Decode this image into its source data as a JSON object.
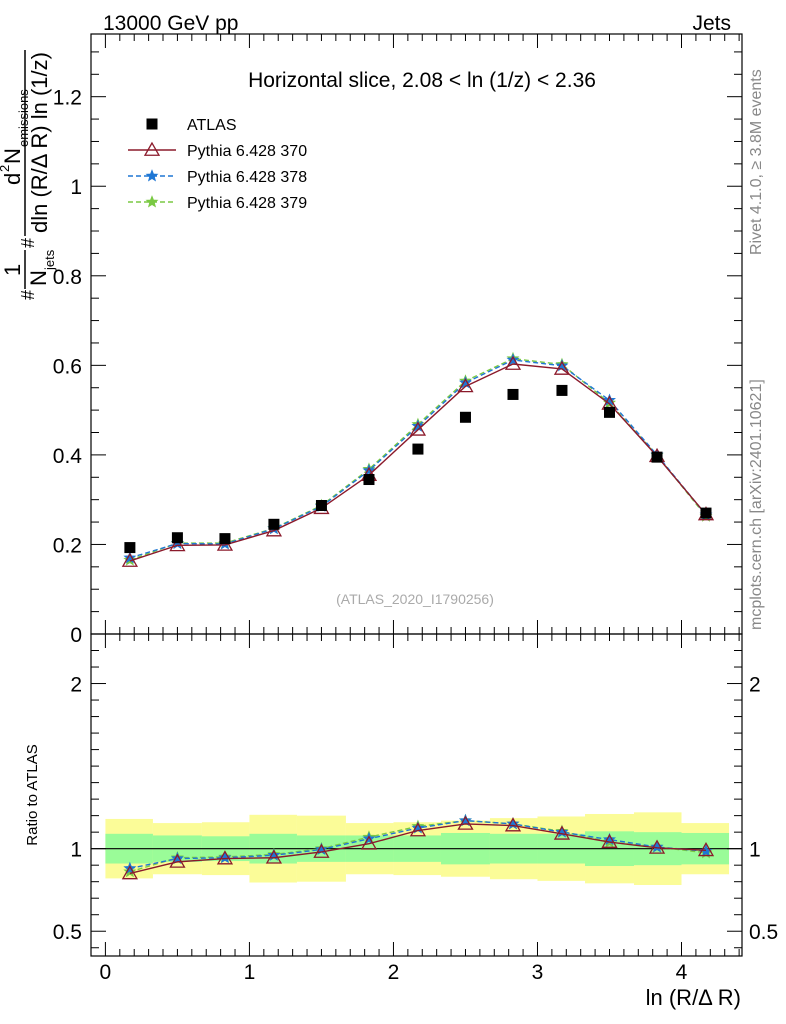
{
  "header": {
    "left_label": "13000 GeV pp",
    "right_label": "Jets",
    "side_label_top": "Rivet 4.1.0, ≥ 3.8M events",
    "side_label_bottom": "mcplots.cern.ch [arXiv:2401.10621]"
  },
  "chart_data": {
    "type": "scatter",
    "title": "Horizontal slice, 2.08 < ln (1/z) < 2.36",
    "watermark": "(ATLAS_2020_I1790256)",
    "xlabel": "ln (R/Δ R)",
    "ylabel": {
      "prefix": "#",
      "num_one": "1",
      "den_n": "N",
      "den_sub": "jets",
      "mid_hash": "#",
      "num_d": "d",
      "num_sup": "2",
      "num_n": "N",
      "num_sub": "emissions",
      "den_text": "dln (R/Δ R) ln (1/z)"
    },
    "ratio_ylabel": "Ratio to ATLAS",
    "xlim": [
      -0.1,
      4.42
    ],
    "ylim_main": [
      0,
      1.34
    ],
    "ylim_ratio": [
      0.35,
      2.3
    ],
    "x_ticks": [
      {
        "value": 0,
        "label": "0"
      },
      {
        "value": 1,
        "label": "1"
      },
      {
        "value": 2,
        "label": "2"
      },
      {
        "value": 3,
        "label": "3"
      },
      {
        "value": 4,
        "label": "4"
      }
    ],
    "y_ticks_main": [
      {
        "value": 0,
        "label": "0"
      },
      {
        "value": 0.2,
        "label": "0.2"
      },
      {
        "value": 0.4,
        "label": "0.4"
      },
      {
        "value": 0.6,
        "label": "0.6"
      },
      {
        "value": 0.8,
        "label": "0.8"
      },
      {
        "value": 1.0,
        "label": "1"
      },
      {
        "value": 1.2,
        "label": "1.2"
      }
    ],
    "y_ticks_ratio": [
      {
        "value": 0.5,
        "label": "0.5"
      },
      {
        "value": 1,
        "label": "1"
      },
      {
        "value": 2,
        "label": "2"
      }
    ],
    "x": [
      0.17,
      0.5,
      0.83,
      1.17,
      1.5,
      1.83,
      2.17,
      2.5,
      2.83,
      3.17,
      3.5,
      3.83,
      4.17
    ],
    "bin_edges": [
      0,
      0.33,
      0.67,
      1.0,
      1.33,
      1.67,
      2.0,
      2.33,
      2.67,
      3.0,
      3.33,
      3.67,
      4.0,
      4.33
    ],
    "series": [
      {
        "name": "ATLAS",
        "color": "#000000",
        "marker": "square",
        "line": "none",
        "values": [
          0.193,
          0.215,
          0.213,
          0.245,
          0.287,
          0.345,
          0.413,
          0.484,
          0.535,
          0.544,
          0.495,
          0.395,
          0.27
        ]
      },
      {
        "name": "Pythia 6.428 370",
        "color": "#8b1a2b",
        "marker": "triangle",
        "line": "solid",
        "values": [
          0.163,
          0.198,
          0.199,
          0.231,
          0.281,
          0.355,
          0.456,
          0.553,
          0.603,
          0.592,
          0.514,
          0.397,
          0.267
        ]
      },
      {
        "name": "Pythia 6.428 378",
        "color": "#1f77d4",
        "marker": "star",
        "line": "dashed",
        "values": [
          0.17,
          0.202,
          0.201,
          0.235,
          0.285,
          0.365,
          0.464,
          0.561,
          0.612,
          0.599,
          0.522,
          0.4,
          0.266
        ]
      },
      {
        "name": "Pythia 6.428 379",
        "color": "#7ac943",
        "marker": "star",
        "line": "dashed",
        "values": [
          0.165,
          0.203,
          0.203,
          0.236,
          0.287,
          0.368,
          0.468,
          0.565,
          0.615,
          0.602,
          0.516,
          0.399,
          0.263
        ]
      }
    ],
    "ratio_series": [
      {
        "name": "Pythia 6.428 370",
        "values": [
          0.85,
          0.92,
          0.94,
          0.945,
          0.98,
          1.03,
          1.11,
          1.15,
          1.14,
          1.09,
          1.04,
          1.005,
          0.99
        ]
      },
      {
        "name": "Pythia 6.428 378",
        "values": [
          0.88,
          0.94,
          0.945,
          0.96,
          0.995,
          1.06,
          1.125,
          1.17,
          1.15,
          1.1,
          1.055,
          1.01,
          0.985
        ]
      },
      {
        "name": "Pythia 6.428 379",
        "values": [
          0.86,
          0.945,
          0.95,
          0.965,
          1.0,
          1.07,
          1.135,
          1.17,
          1.15,
          1.105,
          1.04,
          1.01,
          0.975
        ]
      }
    ],
    "band_inner": {
      "color": "#9afc98",
      "lo": [
        0.91,
        0.92,
        0.925,
        0.91,
        0.92,
        0.92,
        0.92,
        0.905,
        0.91,
        0.91,
        0.895,
        0.9,
        0.905
      ],
      "hi": [
        1.09,
        1.08,
        1.075,
        1.09,
        1.08,
        1.08,
        1.08,
        1.095,
        1.09,
        1.09,
        1.105,
        1.1,
        1.095
      ]
    },
    "band_outer": {
      "color": "#fbfc98",
      "lo": [
        0.82,
        0.845,
        0.84,
        0.795,
        0.8,
        0.845,
        0.84,
        0.83,
        0.815,
        0.805,
        0.79,
        0.78,
        0.845
      ],
      "hi": [
        1.18,
        1.155,
        1.16,
        1.205,
        1.2,
        1.155,
        1.16,
        1.17,
        1.185,
        1.195,
        1.21,
        1.22,
        1.155
      ]
    }
  }
}
